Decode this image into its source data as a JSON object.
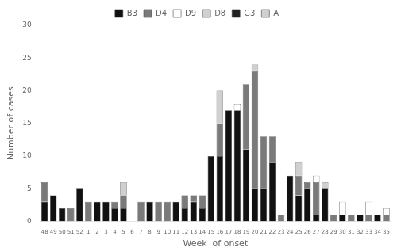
{
  "chart_data": {
    "type": "bar",
    "stacked": true,
    "legend": "top",
    "grid": false,
    "xlabel": "Week  of onset",
    "ylabel": "Number of cases",
    "categories": [
      "48",
      "49",
      "50",
      "51",
      "52",
      "1",
      "2",
      "3",
      "4",
      "5",
      "6",
      "7",
      "8",
      "9",
      "10",
      "11",
      "12",
      "13",
      "14",
      "15",
      "16",
      "17",
      "18",
      "19",
      "20",
      "21",
      "22",
      "23",
      "24",
      "25",
      "26",
      "27",
      "28",
      "29",
      "30",
      "31",
      "32",
      "33",
      "34",
      "35"
    ],
    "series": [
      {
        "name": "B3",
        "color": "#111111",
        "values": [
          3,
          4,
          2,
          0,
          5,
          0,
          3,
          3,
          2,
          2,
          0,
          0,
          3,
          0,
          0,
          3,
          2,
          3,
          2,
          10,
          10,
          17,
          17,
          11,
          5,
          5,
          9,
          0,
          7,
          4,
          5,
          1,
          5,
          0,
          1,
          0,
          1,
          0,
          1,
          0
        ]
      },
      {
        "name": "D4",
        "color": "#7a7a7a",
        "values": [
          3,
          0,
          0,
          2,
          0,
          3,
          0,
          0,
          1,
          2,
          0,
          3,
          0,
          3,
          3,
          0,
          2,
          1,
          2,
          0,
          5,
          0,
          0,
          10,
          18,
          8,
          4,
          1,
          0,
          3,
          1,
          5,
          0,
          1,
          0,
          1,
          0,
          1,
          0,
          1
        ]
      },
      {
        "name": "D9",
        "color": "#ffffff",
        "values": [
          0,
          0,
          0,
          0,
          0,
          0,
          0,
          0,
          0,
          0,
          0,
          0,
          0,
          0,
          0,
          0,
          0,
          0,
          0,
          0,
          0,
          0,
          1,
          0,
          0,
          0,
          0,
          0,
          0,
          0,
          0,
          1,
          0,
          0,
          2,
          0,
          0,
          2,
          0,
          1
        ]
      },
      {
        "name": "D8",
        "color": "#d0d0d0",
        "values": [
          0,
          0,
          0,
          0,
          0,
          0,
          0,
          0,
          0,
          2,
          0,
          0,
          0,
          0,
          0,
          0,
          0,
          0,
          0,
          0,
          5,
          0,
          0,
          0,
          1,
          0,
          0,
          0,
          0,
          2,
          0,
          0,
          0,
          0,
          0,
          0,
          0,
          0,
          0,
          0
        ]
      },
      {
        "name": "G3",
        "color": "#222222",
        "values": [
          0,
          0,
          0,
          0,
          0,
          0,
          0,
          0,
          0,
          0,
          0,
          0,
          0,
          0,
          0,
          0,
          0,
          0,
          0,
          0,
          0,
          0,
          0,
          0,
          0,
          0,
          0,
          0,
          0,
          0,
          0,
          0,
          0,
          0,
          0,
          0,
          0,
          0,
          0,
          0
        ]
      },
      {
        "name": "A",
        "color": "#d0d0d0",
        "values": [
          0,
          0,
          0,
          0,
          0,
          0,
          0,
          0,
          0,
          0,
          0,
          0,
          0,
          0,
          0,
          0,
          0,
          0,
          0,
          0,
          0,
          0,
          0,
          0,
          0,
          0,
          0,
          0,
          0,
          0,
          0,
          0,
          1,
          0,
          0,
          0,
          0,
          0,
          0,
          0
        ]
      }
    ],
    "ylim": [
      0,
      30
    ],
    "yticks": [
      0,
      5,
      10,
      15,
      20,
      25,
      30
    ]
  }
}
